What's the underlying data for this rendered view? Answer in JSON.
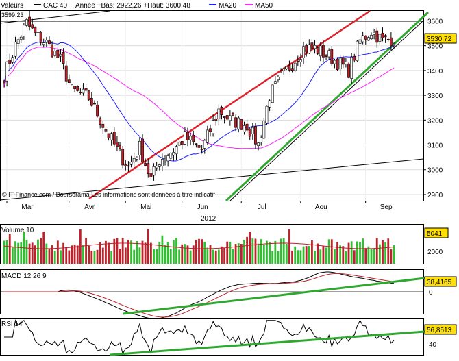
{
  "header": {
    "values_label": "Valeurs",
    "instrument": "CAC 40",
    "year_info": "Année +Bas: 2922,26 +Haut: 3600,48",
    "ma20_label": "MA20",
    "ma50_label": "MA50"
  },
  "colors": {
    "up": "#2ec02e",
    "down": "#c0202a",
    "ma20": "#2020ff",
    "ma50": "#ff20ff",
    "channel_red": "#e0202a",
    "trend_green": "#2fa82f",
    "value_box": "#ffe000"
  },
  "footer": {
    "credit": "© IT-Finance.com / Boursorama Les informations sont données à titre indicatif",
    "year": "2012"
  },
  "chart_data": [
    {
      "type": "candlestick",
      "name": "price",
      "ylim": [
        2875,
        3640
      ],
      "yticks": [
        2900,
        3000,
        3100,
        3200,
        3300,
        3400,
        3500,
        3600
      ],
      "month_labels": [
        "Mar",
        "Avr",
        "Mai",
        "Jun",
        "Jul",
        "Aou",
        "Sep"
      ],
      "month_start_index": [
        0,
        22,
        42,
        62,
        83,
        104,
        127
      ],
      "n_bars": 139,
      "high_marker": {
        "label": "3599,23",
        "value": 3599.23
      },
      "last_value": "3530,72",
      "anchors_close": [
        [
          0,
          3380
        ],
        [
          4,
          3500
        ],
        [
          8,
          3590
        ],
        [
          11,
          3545
        ],
        [
          15,
          3510
        ],
        [
          20,
          3440
        ],
        [
          24,
          3320
        ],
        [
          30,
          3290
        ],
        [
          36,
          3160
        ],
        [
          40,
          3080
        ],
        [
          44,
          3010
        ],
        [
          48,
          3090
        ],
        [
          52,
          2960
        ],
        [
          55,
          3040
        ],
        [
          60,
          3080
        ],
        [
          64,
          3130
        ],
        [
          70,
          3080
        ],
        [
          76,
          3240
        ],
        [
          80,
          3200
        ],
        [
          86,
          3180
        ],
        [
          90,
          3100
        ],
        [
          94,
          3300
        ],
        [
          100,
          3400
        ],
        [
          106,
          3490
        ],
        [
          110,
          3490
        ],
        [
          116,
          3450
        ],
        [
          122,
          3400
        ],
        [
          126,
          3520
        ],
        [
          130,
          3560
        ],
        [
          134,
          3520
        ],
        [
          138,
          3530
        ]
      ],
      "ma20_label": "MA20",
      "ma50_label": "MA50"
    },
    {
      "type": "bar",
      "name": "Volume 10",
      "label": "Volume 10",
      "ytick": "2000",
      "last_value": "5041"
    },
    {
      "type": "line",
      "name": "MACD 12 26 9",
      "label": "MACD 12 26 9",
      "ytick": "0",
      "last_value": "38,4165"
    },
    {
      "type": "line",
      "name": "RSI 14",
      "label": "RSI 14",
      "ytick": "40",
      "last_value": "56,8513"
    }
  ]
}
